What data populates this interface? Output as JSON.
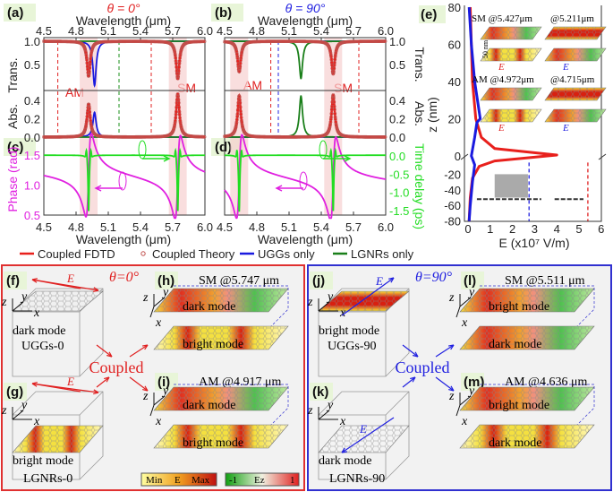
{
  "panels": {
    "a": {
      "label": "(a)",
      "title": "θ = 0°",
      "title_color": "#e02020",
      "xlabel": "Wavelength (μm)",
      "ylabel_trans": "Trans.",
      "ylabel_abs": "Abs.",
      "mode_am": "AM",
      "mode_sm": "SM"
    },
    "b": {
      "label": "(b)",
      "title": "θ = 90°",
      "title_color": "#2020e0",
      "xlabel": "Wavelength (μm)",
      "ylabel_trans": "Trans.",
      "ylabel_abs": "Abs.",
      "mode_am": "AM",
      "mode_sm": "SM"
    },
    "c": {
      "label": "(c)",
      "ylabel": "Phase (rad)",
      "xlabel": "Wavelength (μm)"
    },
    "d": {
      "label": "(d)",
      "ylabel": "Time delay (ps)",
      "xlabel": "Wavelength (μm)"
    },
    "e": {
      "label": "(e)",
      "ylabel": "z (nm)",
      "xlabel": "E (x10⁷ V/m)",
      "insets": [
        "SM @5.427μm",
        "@5.211μm",
        "AM @4.972μm",
        "@4.715μm"
      ],
      "scale_label": "50 nm",
      "field_label": "E"
    }
  },
  "x_ticks": [
    "4.5",
    "4.8",
    "5.1",
    "5.4",
    "5.7",
    "6.0"
  ],
  "trans_ticks": [
    "0.5",
    "1.0"
  ],
  "abs_ticks": [
    "0.0",
    "0.2",
    "0.4"
  ],
  "phase_ticks": [
    "0.5",
    "1.0",
    "1.5"
  ],
  "delay_ticks": [
    "0.0",
    "-0.5",
    "-1.0",
    "-1.5"
  ],
  "e_yticks": [
    "80",
    "60",
    "40",
    "20",
    "0",
    "-20",
    "-40",
    "-60",
    "-80"
  ],
  "e_xticks": [
    "0",
    "1",
    "2",
    "3",
    "4",
    "5",
    "6"
  ],
  "legend": [
    {
      "label": "Coupled FDTD",
      "color": "#e8201c",
      "style": "line"
    },
    {
      "label": "Coupled Theory",
      "color": "#c0504d",
      "style": "circle"
    },
    {
      "label": "UGGs only",
      "color": "#1a1adf",
      "style": "line"
    },
    {
      "label": "LGNRs only",
      "color": "#1a7f1a",
      "style": "line"
    }
  ],
  "colors": {
    "coupled": "#e8201c",
    "uggs": "#1a1adf",
    "lgnrs": "#1a7f1a",
    "phase": "#e020e0",
    "delay": "#22dd22",
    "shade": "#f7d0d0",
    "left_box": "#e03030",
    "right_box": "#3030d0"
  },
  "chart_data": [
    {
      "type": "line",
      "panel": "a",
      "xlim": [
        4.5,
        6.0
      ],
      "ylim_trans": [
        0,
        1.0
      ],
      "ylim_abs": [
        0,
        0.5
      ],
      "series": [
        {
          "name": "Coupled FDTD",
          "resonances": [
            {
              "x": 4.917,
              "trans_min": 0.25,
              "abs_peak": 0.36
            },
            {
              "x": 5.747,
              "trans_min": 0.2,
              "abs_peak": 0.47
            }
          ]
        },
        {
          "name": "UGGs only",
          "resonances": [
            {
              "x": 4.972,
              "trans_min": 0.05,
              "abs_peak": 0.27
            }
          ]
        },
        {
          "name": "LGNRs only",
          "resonances": []
        }
      ],
      "dashed_lines": [
        {
          "x": 4.63,
          "color": "red"
        },
        {
          "x": 5.2,
          "color": "green"
        },
        {
          "x": 5.5,
          "color": "red"
        }
      ]
    },
    {
      "type": "line",
      "panel": "b",
      "xlim": [
        4.5,
        6.0
      ],
      "ylim_trans": [
        0,
        1.0
      ],
      "ylim_abs": [
        0,
        0.5
      ],
      "series": [
        {
          "name": "Coupled FDTD",
          "resonances": [
            {
              "x": 4.636,
              "trans_min": 0.35,
              "abs_peak": 0.45
            },
            {
              "x": 5.511,
              "trans_min": 0.3,
              "abs_peak": 0.46
            }
          ]
        },
        {
          "name": "UGGs only",
          "resonances": []
        },
        {
          "name": "LGNRs only",
          "resonances": [
            {
              "x": 5.211,
              "trans_min": 0.2,
              "abs_peak": 0.45
            }
          ]
        }
      ],
      "dashed_lines": [
        {
          "x": 4.93,
          "color": "red"
        },
        {
          "x": 5.0,
          "color": "blue"
        },
        {
          "x": 5.75,
          "color": "red"
        }
      ]
    },
    {
      "type": "line",
      "panel": "c",
      "xlim": [
        4.5,
        6.0
      ],
      "ylim": [
        0.4,
        1.9
      ],
      "y2lim": [
        -1.75,
        0.45
      ],
      "phase_start": 1.27,
      "phase_end": 1.05,
      "resonances": [
        4.917,
        5.747
      ],
      "phase_min": [
        0.52,
        0.55
      ],
      "delay_min": -1.5
    },
    {
      "type": "line",
      "panel": "d",
      "xlim": [
        4.5,
        6.0
      ],
      "y2lim": [
        -1.75,
        0.45
      ],
      "phase_start": 1.2,
      "phase_end": 1.0,
      "resonances": [
        4.636,
        5.511
      ],
      "delay_min": -1.5
    },
    {
      "type": "line",
      "panel": "e",
      "xlim": [
        0,
        6
      ],
      "ylim": [
        -80,
        80
      ],
      "series": [
        {
          "color": "red",
          "points": [
            [
              0.1,
              80
            ],
            [
              0.15,
              60
            ],
            [
              0.2,
              40
            ],
            [
              0.35,
              20
            ],
            [
              0.6,
              10
            ],
            [
              1.2,
              4
            ],
            [
              4.0,
              0.5
            ],
            [
              1.2,
              -3
            ],
            [
              0.5,
              -10
            ],
            [
              0.2,
              -25
            ],
            [
              0.1,
              -50
            ],
            [
              0.05,
              -80
            ]
          ]
        },
        {
          "color": "blue",
          "points": [
            [
              0.05,
              80
            ],
            [
              0.15,
              60
            ],
            [
              0.3,
              40
            ],
            [
              0.55,
              20
            ],
            [
              0.4,
              18
            ],
            [
              0.3,
              10
            ],
            [
              0.15,
              0
            ],
            [
              0.3,
              -8
            ],
            [
              0.2,
              -30
            ],
            [
              0.1,
              -60
            ],
            [
              0.05,
              -80
            ]
          ]
        }
      ],
      "dashed_lines": [
        {
          "x": 2.75,
          "color": "blue"
        },
        {
          "x": 5.4,
          "color": "red"
        }
      ]
    }
  ],
  "lower_left": {
    "title": "θ=0°",
    "coupled": "Coupled",
    "f": {
      "label": "(f)",
      "mode": "dark mode",
      "name": "UGGs-0",
      "field": "E"
    },
    "g": {
      "label": "(g)",
      "mode": "bright mode",
      "name": "LGNRs-0",
      "field": "E"
    },
    "h": {
      "label": "(h)",
      "title": "SM @5.747 μm",
      "upper": "dark mode",
      "lower": "bright mode"
    },
    "i": {
      "label": "(i)",
      "title": "AM @4.917 μm",
      "upper": "dark mode",
      "lower": "bright mode"
    },
    "colorbar_e": [
      "Min",
      "E",
      "Max"
    ],
    "colorbar_ez": [
      "-1",
      "Ez",
      "1"
    ],
    "axes": [
      "z",
      "y",
      "x"
    ]
  },
  "lower_right": {
    "title": "θ=90°",
    "coupled": "Coupled",
    "j": {
      "label": "(j)",
      "mode": "bright mode",
      "name": "UGGs-90",
      "field": "E"
    },
    "k": {
      "label": "(k)",
      "mode": "dark mode",
      "name": "LGNRs-90",
      "field": "E"
    },
    "l": {
      "label": "(l)",
      "title": "SM @5.511 μm",
      "upper": "bright mode",
      "lower": "dark mode"
    },
    "m": {
      "label": "(m)",
      "title": "AM @4.636 μm",
      "upper": "bright mode",
      "lower": "dark mode"
    },
    "axes": [
      "z",
      "y",
      "x"
    ]
  }
}
